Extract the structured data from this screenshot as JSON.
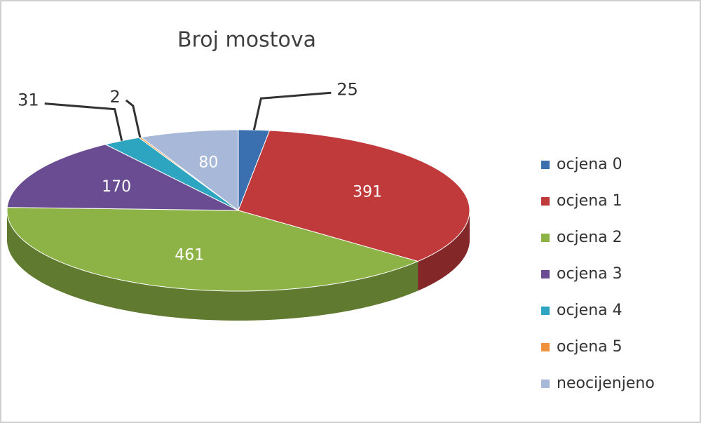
{
  "chart_data": {
    "type": "pie",
    "title": "Broj mostova",
    "categories": [
      "ocjena 0",
      "ocjena 1",
      "ocjena 2",
      "ocjena 3",
      "ocjena 4",
      "ocjena 5",
      "neocijenjeno"
    ],
    "values": [
      25,
      391,
      461,
      170,
      31,
      2,
      80
    ],
    "colors": [
      "#3a6fb0",
      "#c0393b",
      "#8db347",
      "#6a4c93",
      "#2ea5c0",
      "#f0923c",
      "#a8b8d8"
    ],
    "legend": "right"
  }
}
